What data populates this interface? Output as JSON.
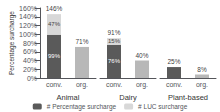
{
  "chart_data": [
    {
      "type": "bar",
      "stacked": true,
      "xlabel": "Animal",
      "ylabel": "Percentage surcharge",
      "categories": [
        "conv.",
        "org."
      ],
      "series": [
        {
          "name": "# Percentage surcharge",
          "color": "#5a5a5a",
          "colors": [
            "#5a5a5a",
            "#b8b8b8"
          ],
          "values": [
            99,
            71
          ],
          "value_labels": [
            "99%",
            null
          ]
        },
        {
          "name": "# LUC surcharge",
          "color": "#d8d8d8",
          "values": [
            47,
            0
          ],
          "value_labels": [
            "47%",
            null
          ]
        }
      ],
      "totals": [
        146,
        71
      ],
      "total_labels": [
        "146%",
        "71%"
      ],
      "data_labels": true,
      "ylim": [
        0,
        160
      ],
      "yticks": [
        {
          "value": 0,
          "label": "0%"
        },
        {
          "value": 20,
          "label": "20%"
        },
        {
          "value": 40,
          "label": "40%"
        },
        {
          "value": 60,
          "label": "60%"
        },
        {
          "value": 80,
          "label": "80%"
        },
        {
          "value": 100,
          "label": "100%"
        },
        {
          "value": 120,
          "label": "120%"
        },
        {
          "value": 140,
          "label": "140%"
        },
        {
          "value": 160,
          "label": "160%"
        }
      ],
      "grid": false,
      "legend": "bottom"
    },
    {
      "type": "bar",
      "stacked": true,
      "xlabel": "Dairy",
      "categories": [
        "conv.",
        "org."
      ],
      "series": [
        {
          "name": "# Percentage surcharge",
          "color": "#5a5a5a",
          "colors": [
            "#5a5a5a",
            "#b8b8b8"
          ],
          "values": [
            76,
            40
          ],
          "value_labels": [
            "76%",
            null
          ]
        },
        {
          "name": "# LUC surcharge",
          "color": "#d8d8d8",
          "values": [
            15,
            0
          ],
          "value_labels": [
            "15%",
            null
          ]
        }
      ],
      "totals": [
        91,
        40
      ],
      "total_labels": [
        "91%",
        "40%"
      ],
      "data_labels": true,
      "ylim": [
        0,
        160
      ],
      "tick_labels": "x",
      "grid": false
    },
    {
      "type": "bar",
      "stacked": true,
      "xlabel": "Plant-based",
      "categories": [
        "conv.",
        "org."
      ],
      "series": [
        {
          "name": "# Percentage surcharge",
          "color": "#5a5a5a",
          "colors": [
            "#5a5a5a",
            "#b8b8b8"
          ],
          "values": [
            25,
            8
          ],
          "value_labels": [
            null,
            null
          ]
        },
        {
          "name": "# LUC surcharge",
          "color": "#d8d8d8",
          "values": [
            0,
            0
          ],
          "value_labels": [
            null,
            null
          ]
        }
      ],
      "totals": [
        25,
        8
      ],
      "total_labels": [
        "25%",
        "8%"
      ],
      "data_labels": true,
      "ylim": [
        0,
        160
      ],
      "tick_labels": "x",
      "grid": false
    }
  ]
}
